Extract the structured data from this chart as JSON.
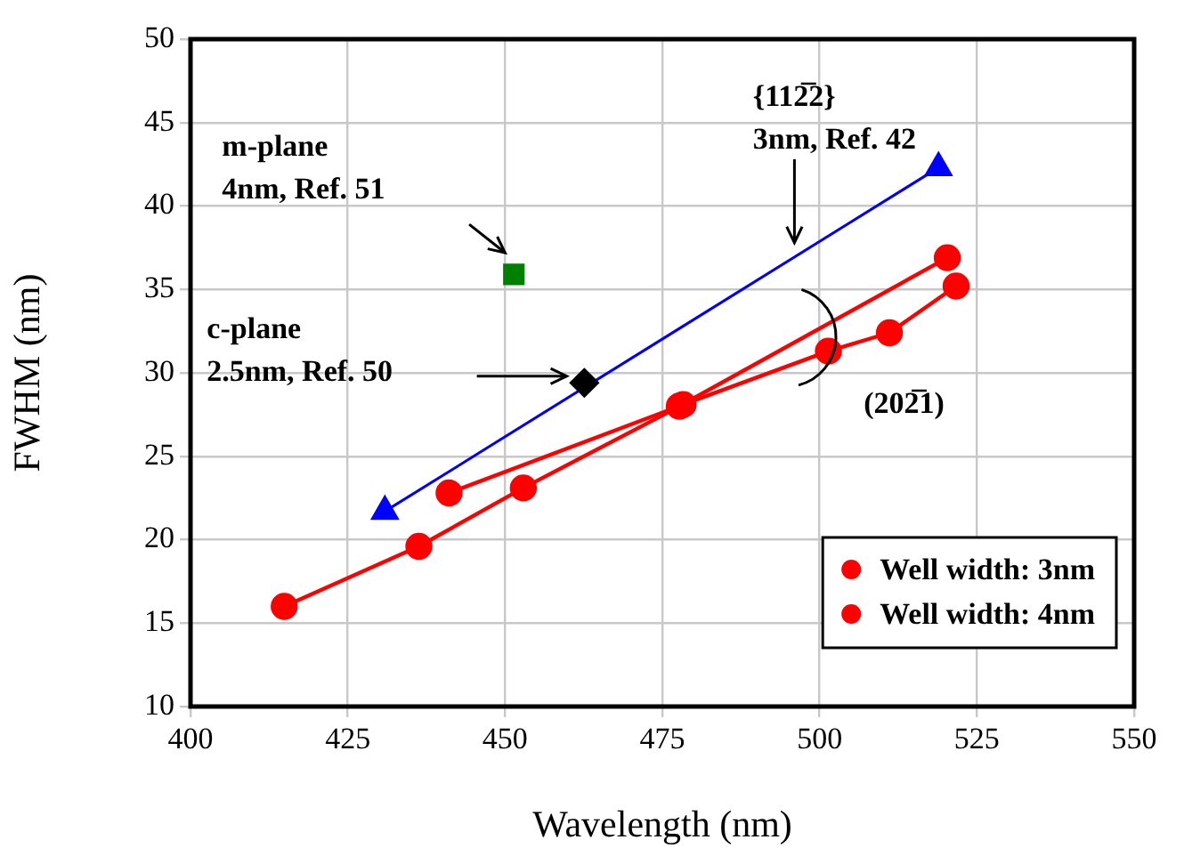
{
  "chart_data": {
    "type": "line",
    "xlabel": "Wavelength (nm)",
    "ylabel": "FWHM (nm)",
    "xlim": [
      400,
      550
    ],
    "xticks": [
      400,
      425,
      450,
      475,
      500,
      525,
      550
    ],
    "ylim": [
      10,
      50
    ],
    "yticks": [
      10,
      15,
      20,
      25,
      30,
      35,
      40,
      45,
      50
    ],
    "grid": true,
    "legend": "bottom right",
    "series": [
      {
        "name": "Well width: 3nm",
        "color": "#ff0000",
        "type": "line",
        "marker": "circle",
        "x": [
          414.9,
          436.3,
          452.9,
          478.3,
          501.4,
          511.1,
          521.7
        ],
        "values": [
          16.0,
          19.6,
          23.1,
          28.1,
          31.3,
          32.4,
          35.2
        ]
      },
      {
        "name": "Well width: 4nm",
        "color": "#ff0000",
        "type": "line",
        "marker": "circle",
        "x": [
          441.1,
          477.7,
          520.3
        ],
        "values": [
          22.8,
          28.0,
          36.9
        ]
      },
      {
        "color": "#0000ff",
        "type": "line",
        "marker": "triangle",
        "x": [
          430.9,
          518.9
        ],
        "values": [
          21.7,
          42.3
        ]
      },
      {
        "color": "#008000",
        "type": "scatter",
        "marker": "square",
        "x": [
          451.4
        ],
        "values": [
          35.9
        ]
      },
      {
        "color": "#000000",
        "type": "scatter",
        "marker": "diamond",
        "x": [
          462.6
        ],
        "values": [
          29.4
        ]
      }
    ],
    "annotations": [
      "m-plane\n4nm, Ref. 51",
      "{112̅2}\n3nm, Ref. 42",
      "c-plane\n2.5nm, Ref. 50",
      "(202̅1)"
    ]
  }
}
